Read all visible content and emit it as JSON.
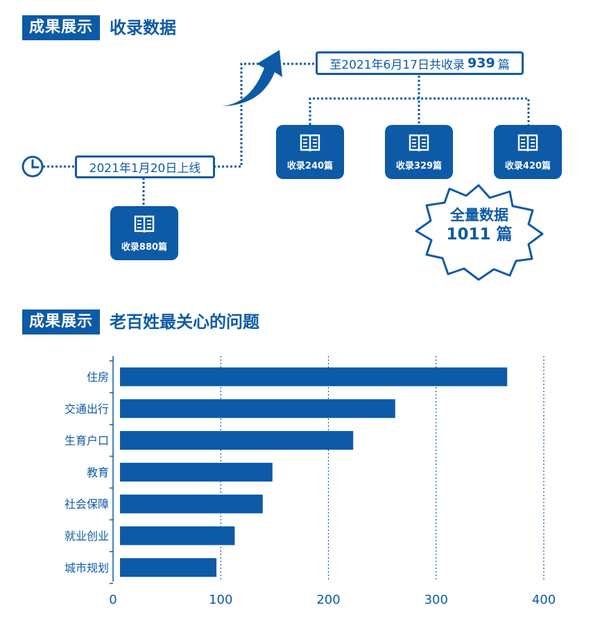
{
  "section1": {
    "tag": "成果展示",
    "title": "收录数据"
  },
  "launch_label": "2021年1月20日上线",
  "summary": {
    "prefix": "至2021年6月17日共收录",
    "count": "939",
    "unit": "篇"
  },
  "boxes": {
    "launch": "收录880篇",
    "a": "收录240篇",
    "b": "收录329篇",
    "c": "收录420篇"
  },
  "total": {
    "line1": "全量数据",
    "line2": "1011 篇"
  },
  "section2": {
    "tag": "成果展示",
    "title": "老百姓最关心的问题"
  },
  "colors": {
    "primary": "#0d5aa7",
    "grid": "#0d5aa7",
    "background": "#ffffff"
  },
  "icons": {
    "clock": "clock-icon",
    "book": "book-icon",
    "arrow": "curved-arrow-icon"
  },
  "chart_data": {
    "type": "bar",
    "orientation": "horizontal",
    "categories": [
      "住房",
      "交通出行",
      "生育户口",
      "教育",
      "社会保障",
      "就业创业",
      "城市规划"
    ],
    "values": [
      366,
      262,
      223,
      148,
      139,
      113,
      96
    ],
    "xlim": [
      0,
      400
    ],
    "xticks": [
      0,
      100,
      200,
      300,
      400
    ],
    "grid": "vertical dashed",
    "title": "",
    "xlabel": "",
    "ylabel": ""
  }
}
